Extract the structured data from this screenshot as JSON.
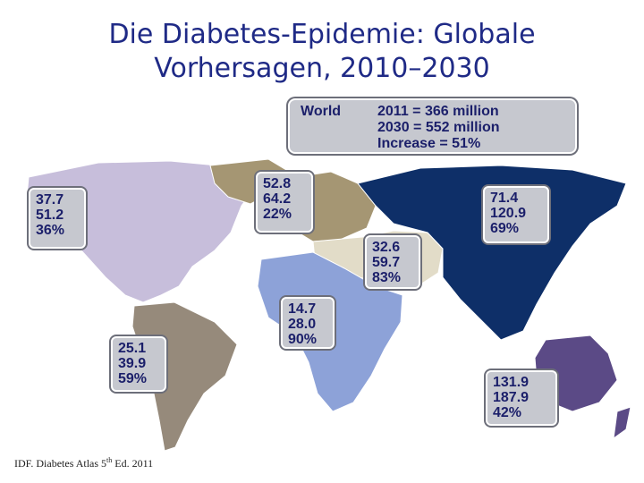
{
  "title": {
    "line1": "Die Diabetes-Epidemie: Globale",
    "line2": "Vorhersagen, 2010–2030"
  },
  "world": {
    "label": "World",
    "lines": [
      "2011 = 366 million",
      "2030 = 552 million",
      "Increase = 51%"
    ]
  },
  "regions": [
    {
      "id": "north-america",
      "values": [
        "37.7",
        "51.2",
        "36%"
      ],
      "color": "#c7bedb"
    },
    {
      "id": "europe",
      "values": [
        "52.8",
        "64.2",
        "22%"
      ],
      "color": "#a59673"
    },
    {
      "id": "middle-east-north-africa",
      "values": [
        "32.6",
        "59.7",
        "83%"
      ],
      "color": "#e2dcc8"
    },
    {
      "id": "western-pacific",
      "values": [
        "71.4",
        "120.9",
        "69%"
      ],
      "color": "#0e2f68"
    },
    {
      "id": "africa",
      "values": [
        "14.7",
        "28.0",
        "90%"
      ],
      "color": "#8da2d8"
    },
    {
      "id": "south-central-america",
      "values": [
        "25.1",
        "39.9",
        "59%"
      ],
      "color": "#968a7b"
    },
    {
      "id": "south-east-asia",
      "values": [
        "131.9",
        "187.9",
        "42%"
      ],
      "color": "#5b4a86"
    }
  ],
  "footer": {
    "prefix": "IDF. Diabetes Atlas 5",
    "sup": "th",
    "suffix": " Ed. 2011"
  }
}
